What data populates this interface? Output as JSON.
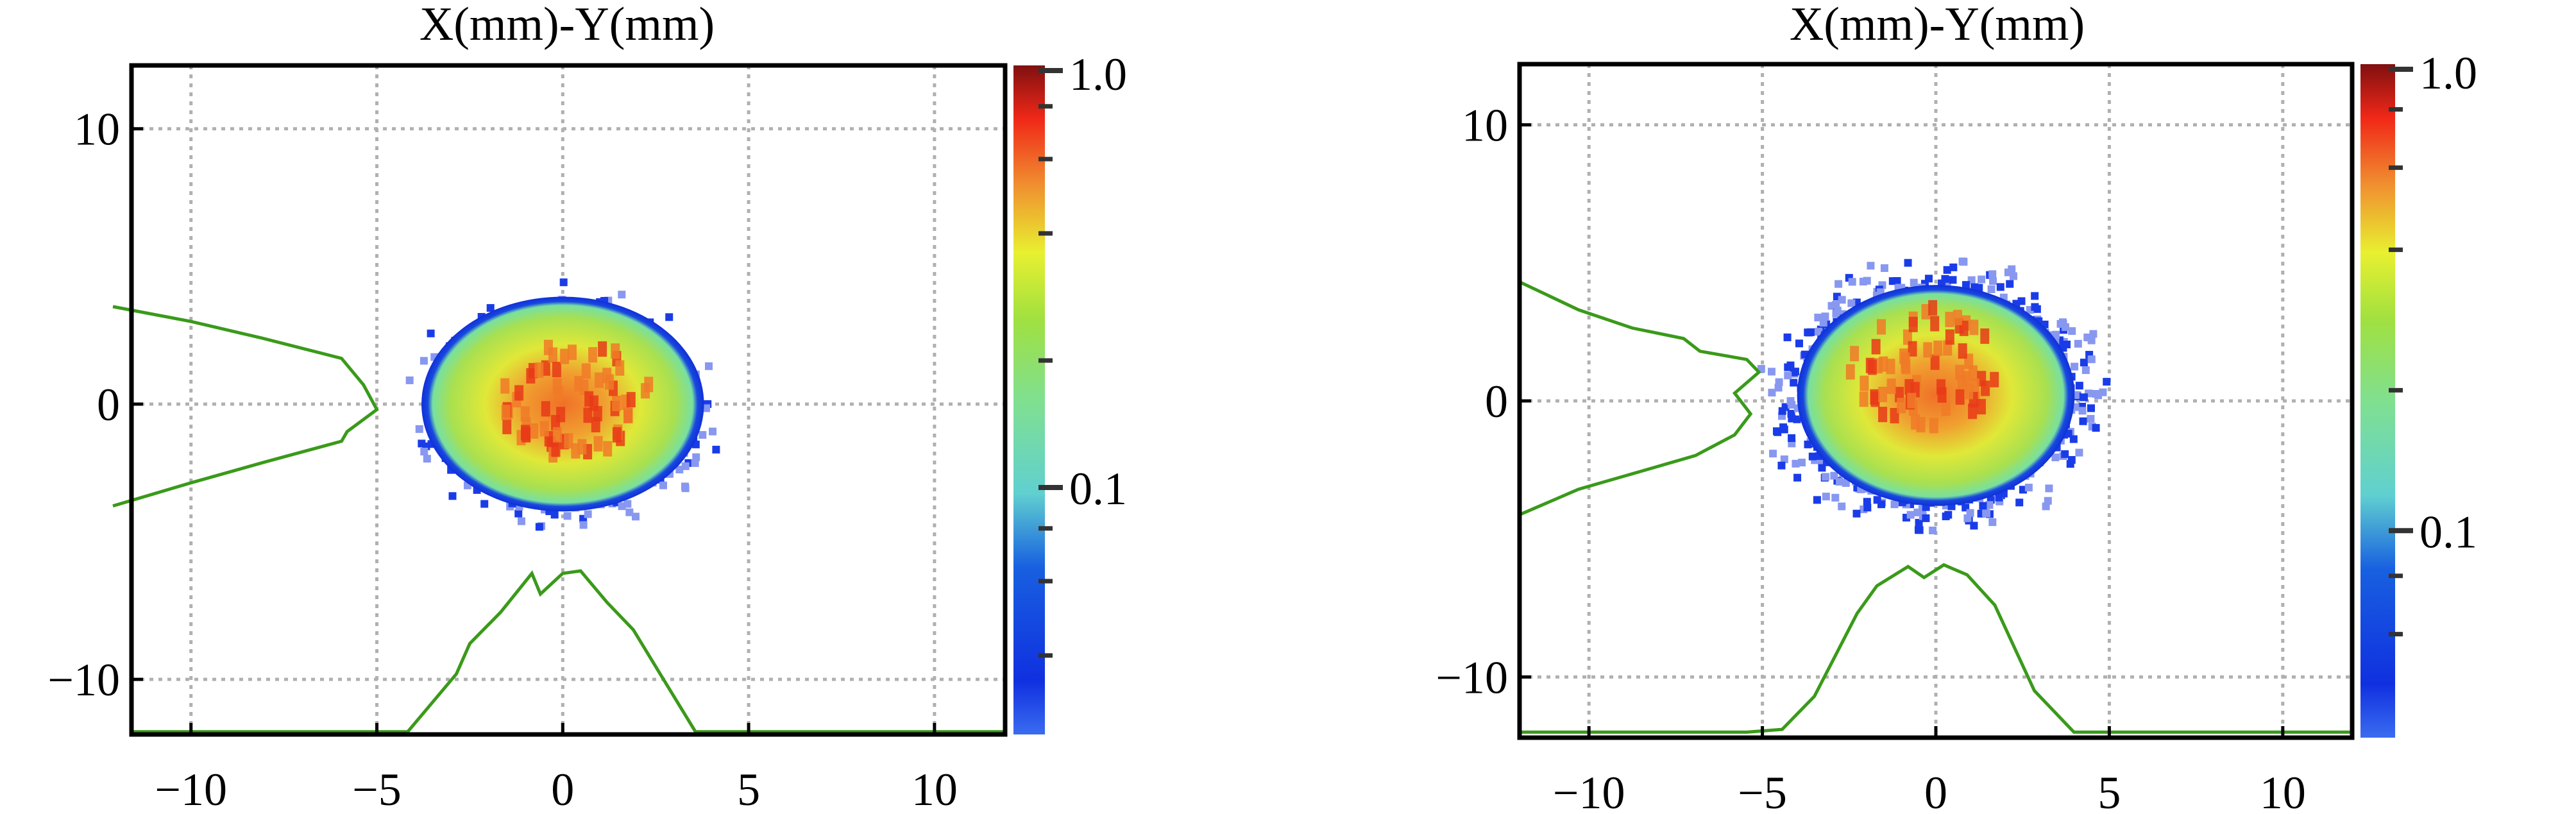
{
  "chart_data": [
    {
      "type": "heatmap",
      "title": "X(mm)-Y(mm)",
      "xlim": [
        -11.6,
        11.9
      ],
      "ylim": [
        -12.0,
        12.3
      ],
      "xticks": [
        -10,
        -5,
        0,
        5,
        10
      ],
      "yticks": [
        -10,
        0,
        10
      ],
      "xtick_labels": [
        "−10",
        "−5",
        "0",
        "5",
        "10"
      ],
      "ytick_labels": [
        "−10",
        "0",
        "10"
      ],
      "grid": true,
      "colorbar": {
        "scale": "log",
        "range": [
          0.026,
          1.0
        ],
        "labels": [
          "1.0",
          "0.1"
        ],
        "label_values": [
          1.0,
          0.1
        ],
        "minor_ticks": [
          0.8,
          0.6,
          0.4,
          0.2,
          0.08,
          0.06,
          0.04
        ]
      },
      "beam": {
        "center": [
          0.0,
          0.0
        ],
        "radius_x": 3.8,
        "radius_y": 3.9,
        "peak": [
          0.3,
          0.2
        ],
        "halo_radius": 4.6
      },
      "y_profile": [
        [
          -12.1,
          3.54
        ],
        [
          -10,
          3.0
        ],
        [
          -8.1,
          2.4
        ],
        [
          -5.95,
          1.66
        ],
        [
          -5.36,
          0.7
        ],
        [
          -5,
          -0.2
        ],
        [
          -5.8,
          -1.0
        ],
        [
          -5.95,
          -1.35
        ],
        [
          -8,
          -2.1
        ],
        [
          -10,
          -2.86
        ],
        [
          -12.1,
          -3.7
        ]
      ],
      "x_profile": [
        [
          -11.6,
          -11.9
        ],
        [
          -4.17,
          -11.9
        ],
        [
          -2.86,
          -9.8
        ],
        [
          -2.5,
          -8.7
        ],
        [
          -1.67,
          -7.56
        ],
        [
          -0.83,
          -6.15
        ],
        [
          -0.6,
          -6.9
        ],
        [
          0,
          -6.15
        ],
        [
          0.48,
          -6.06
        ],
        [
          1.19,
          -7.2
        ],
        [
          1.9,
          -8.2
        ],
        [
          2.62,
          -9.8
        ],
        [
          3.57,
          -11.9
        ],
        [
          11.9,
          -11.9
        ]
      ]
    },
    {
      "type": "heatmap",
      "title": "X(mm)-Y(mm)",
      "xlim": [
        -12.0,
        12.0
      ],
      "ylim": [
        -12.2,
        12.2
      ],
      "xticks": [
        -10,
        -5,
        0,
        5,
        10
      ],
      "yticks": [
        -10,
        0,
        10
      ],
      "xtick_labels": [
        "−10",
        "−5",
        "0",
        "5",
        "10"
      ],
      "ytick_labels": [
        "−10",
        "0",
        "10"
      ],
      "grid": true,
      "colorbar": {
        "scale": "log",
        "range": [
          0.036,
          1.0
        ],
        "labels": [
          "1.0",
          "0.1"
        ],
        "label_values": [
          1.0,
          0.1
        ],
        "minor_ticks": [
          0.8,
          0.6,
          0.4,
          0.2,
          0.08,
          0.06
        ]
      },
      "beam": {
        "center": [
          0.0,
          0.2
        ],
        "radius_x": 4.0,
        "radius_y": 4.0,
        "peak": [
          -0.3,
          1.2
        ],
        "halo_radius": 5.3
      },
      "y_profile": [
        [
          -12.05,
          4.34
        ],
        [
          -10.3,
          3.3
        ],
        [
          -8.75,
          2.64
        ],
        [
          -7.27,
          2.26
        ],
        [
          -6.8,
          1.8
        ],
        [
          -5.45,
          1.5
        ],
        [
          -5.1,
          1.04
        ],
        [
          -5.8,
          0.28
        ],
        [
          -5.34,
          -0.47
        ],
        [
          -5.8,
          -1.23
        ],
        [
          -6.93,
          -1.98
        ],
        [
          -8.5,
          -2.55
        ],
        [
          -10.3,
          -3.2
        ],
        [
          -12.05,
          -4.15
        ]
      ],
      "x_profile": [
        [
          -12.0,
          -12.0
        ],
        [
          -5.45,
          -12.0
        ],
        [
          -4.43,
          -11.9
        ],
        [
          -3.5,
          -10.7
        ],
        [
          -2.27,
          -7.7
        ],
        [
          -1.7,
          -6.7
        ],
        [
          -0.8,
          -6.0
        ],
        [
          -0.34,
          -6.4
        ],
        [
          0.23,
          -5.94
        ],
        [
          0.9,
          -6.3
        ],
        [
          1.7,
          -7.4
        ],
        [
          2.84,
          -10.5
        ],
        [
          3.98,
          -12.0
        ],
        [
          4.9,
          -12.0
        ],
        [
          12.0,
          -12.0
        ]
      ]
    }
  ],
  "colors": {
    "profile_line": "#3a9a1a",
    "grid": "#b0b0b0",
    "frame": "#000000"
  }
}
